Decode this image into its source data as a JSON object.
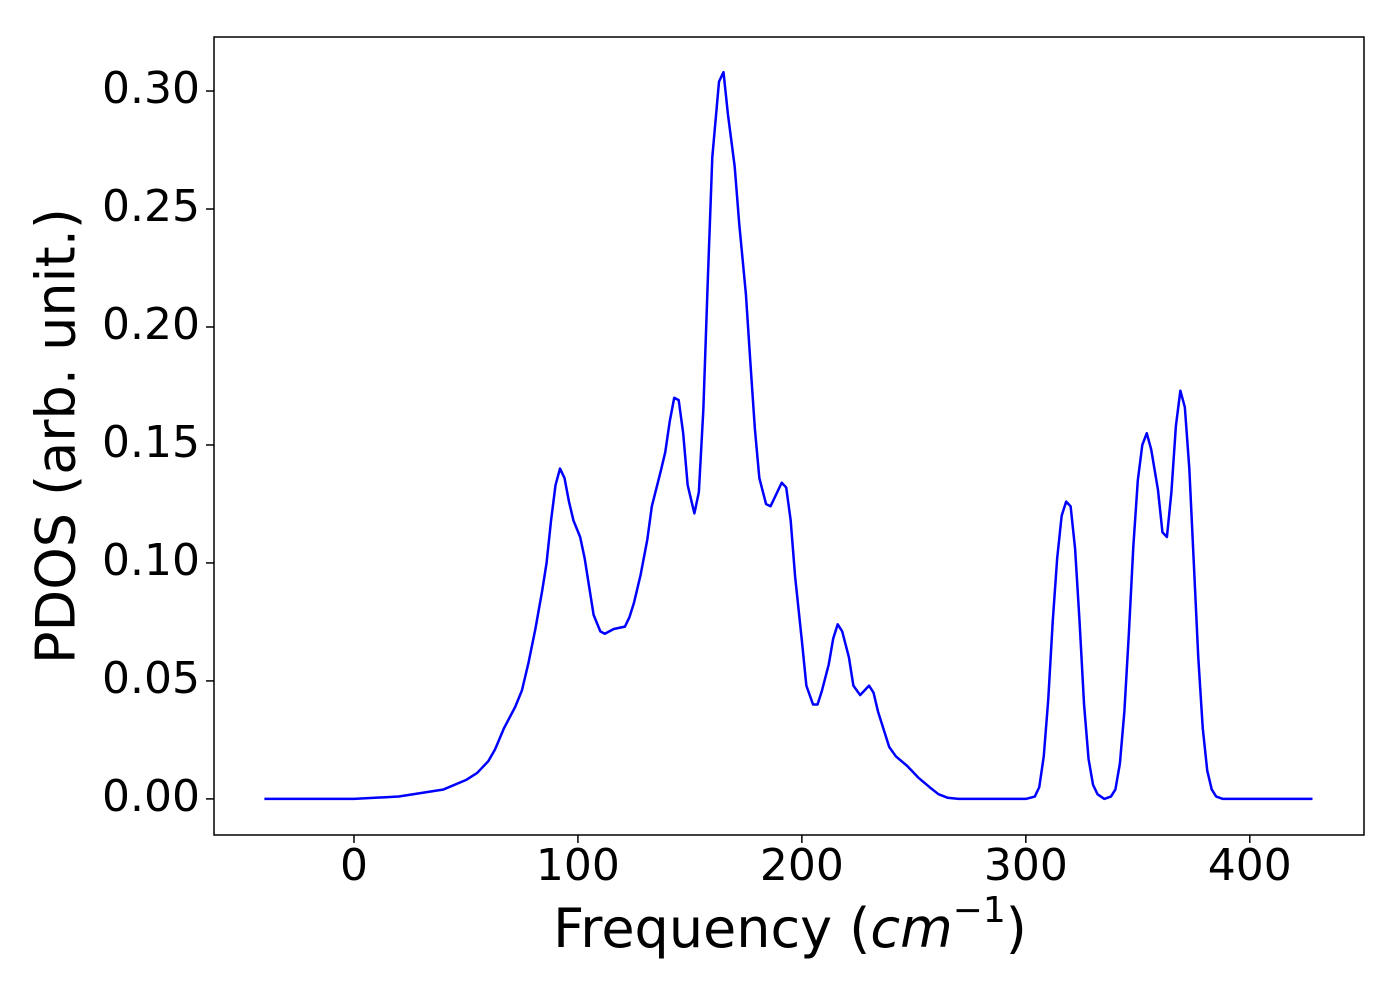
{
  "chart_data": {
    "type": "line",
    "xlabel": [
      "Frequency (",
      "cm",
      "−1",
      ")"
    ],
    "ylabel": "PDOS (arb. unit.)",
    "series": [
      {
        "color": "#0000ff",
        "x": [
          -40,
          -20,
          0,
          20,
          40,
          50,
          55,
          60,
          63,
          67,
          72,
          75,
          78,
          81,
          84,
          86,
          88,
          90,
          92,
          94,
          96,
          98,
          101,
          103,
          105,
          107,
          110,
          112,
          116,
          121,
          123,
          125,
          128,
          131,
          133,
          137,
          139,
          141,
          143,
          145,
          147,
          149,
          152,
          154,
          156,
          158,
          160,
          163,
          165,
          167,
          170,
          172,
          175,
          177,
          179,
          181,
          184,
          186,
          188,
          191,
          193,
          195,
          197,
          200,
          202,
          205,
          207,
          209,
          212,
          214,
          216,
          218,
          221,
          223,
          226,
          230,
          232,
          234,
          237,
          239,
          242,
          247,
          252,
          257,
          261,
          265,
          270,
          300,
          304,
          306,
          308,
          310,
          312,
          314,
          316,
          318,
          320,
          322,
          324,
          326,
          328,
          330,
          332,
          335,
          338,
          340,
          342,
          344,
          346,
          348,
          350,
          352,
          354,
          356,
          359,
          361,
          363,
          365,
          367,
          369,
          371,
          373,
          375,
          377,
          379,
          381,
          383,
          385,
          388,
          428
        ],
        "values": [
          0,
          0,
          0,
          0.001,
          0.004,
          0.008,
          0.011,
          0.016,
          0.021,
          0.03,
          0.039,
          0.046,
          0.058,
          0.072,
          0.088,
          0.1,
          0.118,
          0.133,
          0.14,
          0.136,
          0.126,
          0.118,
          0.111,
          0.102,
          0.09,
          0.078,
          0.071,
          0.07,
          0.072,
          0.073,
          0.077,
          0.083,
          0.095,
          0.11,
          0.124,
          0.139,
          0.147,
          0.16,
          0.17,
          0.169,
          0.155,
          0.133,
          0.121,
          0.13,
          0.165,
          0.22,
          0.272,
          0.304,
          0.308,
          0.29,
          0.268,
          0.244,
          0.214,
          0.185,
          0.157,
          0.136,
          0.125,
          0.124,
          0.128,
          0.134,
          0.132,
          0.118,
          0.094,
          0.067,
          0.048,
          0.04,
          0.04,
          0.046,
          0.057,
          0.068,
          0.074,
          0.071,
          0.06,
          0.048,
          0.044,
          0.048,
          0.045,
          0.037,
          0.028,
          0.022,
          0.018,
          0.014,
          0.009,
          0.005,
          0.002,
          0.0005,
          0,
          0,
          0.001,
          0.005,
          0.018,
          0.042,
          0.075,
          0.102,
          0.12,
          0.126,
          0.124,
          0.106,
          0.075,
          0.04,
          0.017,
          0.006,
          0.002,
          0,
          0.001,
          0.004,
          0.015,
          0.037,
          0.07,
          0.107,
          0.135,
          0.15,
          0.155,
          0.148,
          0.131,
          0.113,
          0.111,
          0.13,
          0.158,
          0.173,
          0.166,
          0.14,
          0.1,
          0.06,
          0.03,
          0.012,
          0.004,
          0.001,
          0,
          0
        ]
      }
    ],
    "xlim": [
      -62.5,
      451
    ],
    "xticks": [
      0,
      100,
      200,
      300,
      400
    ],
    "ylim": [
      -0.0153,
      0.3229
    ],
    "yticks": [
      {
        "value": 0,
        "label": "0.00"
      },
      {
        "value": 0.05,
        "label": "0.05"
      },
      {
        "value": 0.1,
        "label": "0.10"
      },
      {
        "value": 0.15,
        "label": "0.15"
      },
      {
        "value": 0.2,
        "label": "0.20"
      },
      {
        "value": 0.25,
        "label": "0.25"
      },
      {
        "value": 0.3,
        "label": "0.30"
      }
    ]
  }
}
